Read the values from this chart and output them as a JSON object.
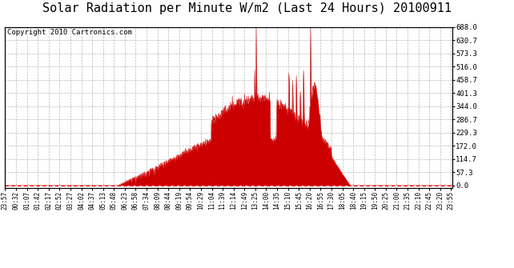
{
  "title": "Solar Radiation per Minute W/m2 (Last 24 Hours) 20100911",
  "copyright": "Copyright 2010 Cartronics.com",
  "y_ticks": [
    0.0,
    57.3,
    114.7,
    172.0,
    229.3,
    286.7,
    344.0,
    401.3,
    458.7,
    516.0,
    573.3,
    630.7,
    688.0
  ],
  "y_min": 0.0,
  "y_max": 688.0,
  "fill_color": "#cc0000",
  "line_color": "#cc0000",
  "bg_color": "#ffffff",
  "grid_color": "#b0b0b0",
  "dashed_line_color": "#ff0000",
  "title_fontsize": 11,
  "copyright_fontsize": 6.5,
  "x_tick_fontsize": 5.5,
  "y_tick_fontsize": 6.5,
  "x_tick_labels": [
    "23:57",
    "00:32",
    "01:07",
    "01:42",
    "02:17",
    "02:52",
    "03:27",
    "04:02",
    "04:37",
    "05:13",
    "05:48",
    "06:23",
    "06:58",
    "07:34",
    "08:09",
    "08:44",
    "09:19",
    "09:54",
    "10:29",
    "11:04",
    "11:39",
    "12:14",
    "12:49",
    "13:25",
    "14:00",
    "14:35",
    "15:10",
    "15:45",
    "16:20",
    "16:55",
    "17:30",
    "18:05",
    "18:40",
    "19:15",
    "19:50",
    "20:25",
    "21:00",
    "21:35",
    "22:10",
    "22:45",
    "23:20",
    "23:55"
  ],
  "x_tick_interval_min": 35
}
